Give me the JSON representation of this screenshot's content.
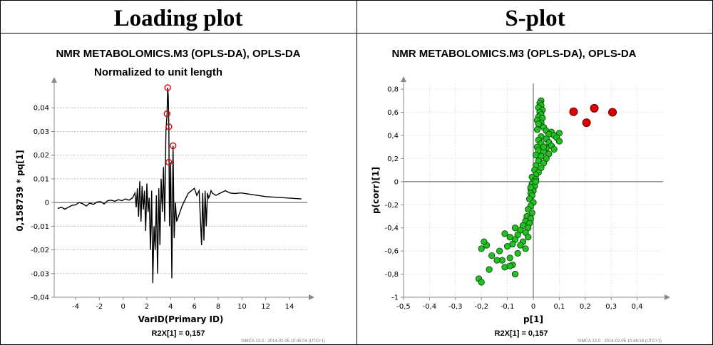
{
  "headers": {
    "left": "Loading plot",
    "right": "S-plot"
  },
  "chart_data": [
    {
      "type": "line",
      "title": "NMR METABOLOMICS.M3 (OPLS-DA), OPLS-DA",
      "subtitle": "Normalized to unit length",
      "xlabel": "VarID(Primary ID)",
      "ylabel": "0,158739 * pq[1]",
      "xlim": [
        -5.8,
        15.5
      ],
      "ylim": [
        -0.04,
        0.05
      ],
      "xticks": [
        -4,
        -2,
        0,
        2,
        4,
        6,
        8,
        10,
        12,
        14
      ],
      "xtick_labels": [
        "-4",
        "-2",
        "0",
        "2",
        "4",
        "6",
        "8",
        "10",
        "12",
        "14"
      ],
      "yticks": [
        -0.04,
        -0.03,
        -0.02,
        -0.01,
        0,
        0.01,
        0.02,
        0.03,
        0.04
      ],
      "ytick_labels": [
        "-0,04",
        "-0,03",
        "-0,02",
        "-0,01",
        "0",
        "0,01",
        "0,02",
        "0,03",
        "0,04"
      ],
      "grid": "horizontal dashed",
      "footer": "R2X[1] = 0,157",
      "watermark": "SIMCA 13.0 · 2014-02-05 10:45:04 (UTC+1)",
      "line_color": "#000000",
      "marker_color": "#e00000",
      "series": [
        {
          "x": [
            -5.5,
            -5.2,
            -4.9,
            -4.6,
            -4.3,
            -4.0,
            -3.7,
            -3.4,
            -3.1,
            -2.8,
            -2.5,
            -2.2,
            -1.9,
            -1.6,
            -1.3,
            -1.0,
            -0.7,
            -0.4,
            -0.1,
            0.2,
            0.5,
            0.8,
            1.0,
            1.1,
            1.2,
            1.3,
            1.4,
            1.5,
            1.6,
            1.7,
            1.8,
            1.9,
            2.0,
            2.1,
            2.2,
            2.3,
            2.4,
            2.5,
            2.6,
            2.7,
            2.8,
            2.9,
            3.0,
            3.1,
            3.2,
            3.3,
            3.4,
            3.5,
            3.6,
            3.7,
            3.75,
            3.8,
            3.85,
            3.9,
            4.0,
            4.1,
            4.2,
            4.3,
            4.4,
            4.5,
            5.0,
            5.5,
            6.0,
            6.2,
            6.4,
            6.6,
            6.7,
            6.8,
            6.9,
            7.0,
            7.1,
            7.2,
            7.3,
            7.4,
            7.5,
            7.8,
            8.2,
            8.6,
            9.0,
            9.4,
            9.8,
            10.0,
            12.0,
            15.0
          ],
          "y": [
            -0.0025,
            -0.002,
            -0.0028,
            -0.002,
            -0.0012,
            -0.001,
            0,
            -0.0005,
            -0.0015,
            -0.0002,
            -0.0008,
            0.0002,
            0.0004,
            -0.0006,
            0.0008,
            0.001,
            0.0005,
            0.0012,
            0.0008,
            0.0015,
            0.001,
            0.002,
            0.004,
            -0.002,
            0.006,
            -0.006,
            0.009,
            -0.008,
            0.007,
            -0.003,
            0.005,
            -0.012,
            0.008,
            -0.004,
            0.002,
            -0.02,
            0.005,
            -0.034,
            -0.01,
            -0.02,
            0.003,
            -0.03,
            0.006,
            -0.018,
            0.01,
            -0.004,
            0.015,
            -0.008,
            0.03,
            0.0375,
            0.0485,
            0.045,
            0.032,
            -0.01,
            0.017,
            -0.032,
            0.024,
            -0.015,
            0,
            -0.008,
            -0.001,
            0.004,
            0.006,
            0.003,
            0.005,
            -0.018,
            0.004,
            -0.016,
            0.005,
            -0.01,
            0.004,
            0.002,
            0.003,
            0.005,
            0.004,
            0.003,
            0.004,
            0.005,
            0.004,
            0.0038,
            0.004,
            0.004,
            0.0025,
            0.0015
          ]
        }
      ],
      "markers": [
        {
          "x": 3.75,
          "y": 0.0485
        },
        {
          "x": 3.7,
          "y": 0.0375
        },
        {
          "x": 3.85,
          "y": 0.032
        },
        {
          "x": 4.2,
          "y": 0.024
        },
        {
          "x": 3.85,
          "y": 0.017
        }
      ]
    },
    {
      "type": "scatter",
      "title": "NMR METABOLOMICS.M3 (OPLS-DA), OPLS-DA",
      "xlabel": "p[1]",
      "ylabel": "p(corr)[1]",
      "xlim": [
        -0.5,
        0.5
      ],
      "ylim": [
        -1,
        0.85
      ],
      "xticks": [
        -0.5,
        -0.4,
        -0.3,
        -0.2,
        -0.1,
        0,
        0.1,
        0.2,
        0.3,
        0.4
      ],
      "xtick_labels": [
        "-0,5",
        "-0,4",
        "-0,3",
        "-0,2",
        "-0,1",
        "0",
        "0,1",
        "0,2",
        "0,3",
        "0,4"
      ],
      "yticks": [
        -1,
        -0.8,
        -0.6,
        -0.4,
        -0.2,
        0,
        0.2,
        0.4,
        0.6,
        0.8
      ],
      "ytick_labels": [
        "-1",
        "-0,8",
        "-0,6",
        "-0,4",
        "-0,2",
        "0",
        "0,2",
        "0,4",
        "0,6",
        "0,8"
      ],
      "grid": "both dotted",
      "footer": "R2X[1] = 0,157",
      "watermark": "SIMCA 13.0 · 2014-02-05 10:46:19 (UTC+1)",
      "series": [
        {
          "color": "#22c022",
          "points": [
            [
              0.03,
              0.7
            ],
            [
              0.025,
              0.68
            ],
            [
              0.03,
              0.66
            ],
            [
              0.02,
              0.64
            ],
            [
              0.035,
              0.62
            ],
            [
              0.025,
              0.6
            ],
            [
              0.03,
              0.58
            ],
            [
              0.02,
              0.56
            ],
            [
              0.035,
              0.55
            ],
            [
              0.015,
              0.53
            ],
            [
              0.03,
              0.51
            ],
            [
              0.025,
              0.49
            ],
            [
              0.04,
              0.47
            ],
            [
              0.015,
              0.45
            ],
            [
              0.05,
              0.44
            ],
            [
              0.07,
              0.43
            ],
            [
              0.1,
              0.42
            ],
            [
              0.06,
              0.41
            ],
            [
              0.08,
              0.4
            ],
            [
              0.03,
              0.39
            ],
            [
              0.09,
              0.38
            ],
            [
              0.05,
              0.37
            ],
            [
              0.02,
              0.36
            ],
            [
              0.1,
              0.35
            ],
            [
              0.06,
              0.34
            ],
            [
              0.03,
              0.33
            ],
            [
              0.07,
              0.31
            ],
            [
              0.015,
              0.3
            ],
            [
              0.05,
              0.29
            ],
            [
              0.08,
              0.28
            ],
            [
              0.02,
              0.27
            ],
            [
              0.04,
              0.26
            ],
            [
              0.06,
              0.24
            ],
            [
              0.01,
              0.23
            ],
            [
              0.03,
              0.22
            ],
            [
              0.05,
              0.2
            ],
            [
              0.02,
              0.18
            ],
            [
              0.04,
              0.16
            ],
            [
              0.01,
              0.14
            ],
            [
              0.03,
              0.12
            ],
            [
              0.005,
              0.1
            ],
            [
              0.02,
              0.08
            ],
            [
              0.01,
              0.06
            ],
            [
              -0.005,
              0.04
            ],
            [
              0.01,
              0.02
            ],
            [
              0.0,
              0.0
            ],
            [
              -0.005,
              -0.02
            ],
            [
              0.005,
              -0.04
            ],
            [
              -0.01,
              -0.06
            ],
            [
              0.0,
              -0.08
            ],
            [
              -0.01,
              -0.1
            ],
            [
              -0.005,
              -0.12
            ],
            [
              -0.015,
              -0.15
            ],
            [
              0.0,
              -0.18
            ],
            [
              -0.01,
              -0.21
            ],
            [
              -0.02,
              -0.24
            ],
            [
              -0.005,
              -0.27
            ],
            [
              -0.025,
              -0.3
            ],
            [
              -0.01,
              -0.32
            ],
            [
              -0.03,
              -0.34
            ],
            [
              -0.015,
              -0.36
            ],
            [
              -0.04,
              -0.38
            ],
            [
              -0.02,
              -0.4
            ],
            [
              -0.05,
              -0.42
            ],
            [
              -0.03,
              -0.44
            ],
            [
              -0.06,
              -0.46
            ],
            [
              -0.02,
              -0.48
            ],
            [
              -0.07,
              -0.5
            ],
            [
              -0.04,
              -0.52
            ],
            [
              -0.08,
              -0.54
            ],
            [
              -0.05,
              -0.55
            ],
            [
              -0.1,
              -0.56
            ],
            [
              -0.03,
              -0.58
            ],
            [
              -0.13,
              -0.6
            ],
            [
              -0.06,
              -0.62
            ],
            [
              -0.16,
              -0.64
            ],
            [
              -0.09,
              -0.66
            ],
            [
              -0.2,
              -0.58
            ],
            [
              -0.18,
              -0.55
            ],
            [
              -0.19,
              -0.52
            ],
            [
              -0.12,
              -0.68
            ],
            [
              -0.08,
              -0.72
            ],
            [
              -0.17,
              -0.76
            ],
            [
              -0.11,
              -0.74
            ],
            [
              -0.07,
              -0.8
            ],
            [
              -0.21,
              -0.84
            ],
            [
              -0.2,
              -0.87
            ],
            [
              -0.09,
              -0.73
            ],
            [
              -0.14,
              -0.68
            ],
            [
              -0.11,
              -0.45
            ],
            [
              -0.07,
              -0.4
            ],
            [
              -0.09,
              -0.48
            ],
            [
              0.02,
              0.5
            ],
            [
              0.04,
              0.3
            ],
            [
              -0.01,
              -0.05
            ],
            [
              0.01,
              0.0
            ]
          ]
        },
        {
          "color": "#e00000",
          "points": [
            [
              0.155,
              0.605
            ],
            [
              0.235,
              0.635
            ],
            [
              0.305,
              0.6
            ],
            [
              0.205,
              0.51
            ]
          ]
        }
      ]
    }
  ]
}
